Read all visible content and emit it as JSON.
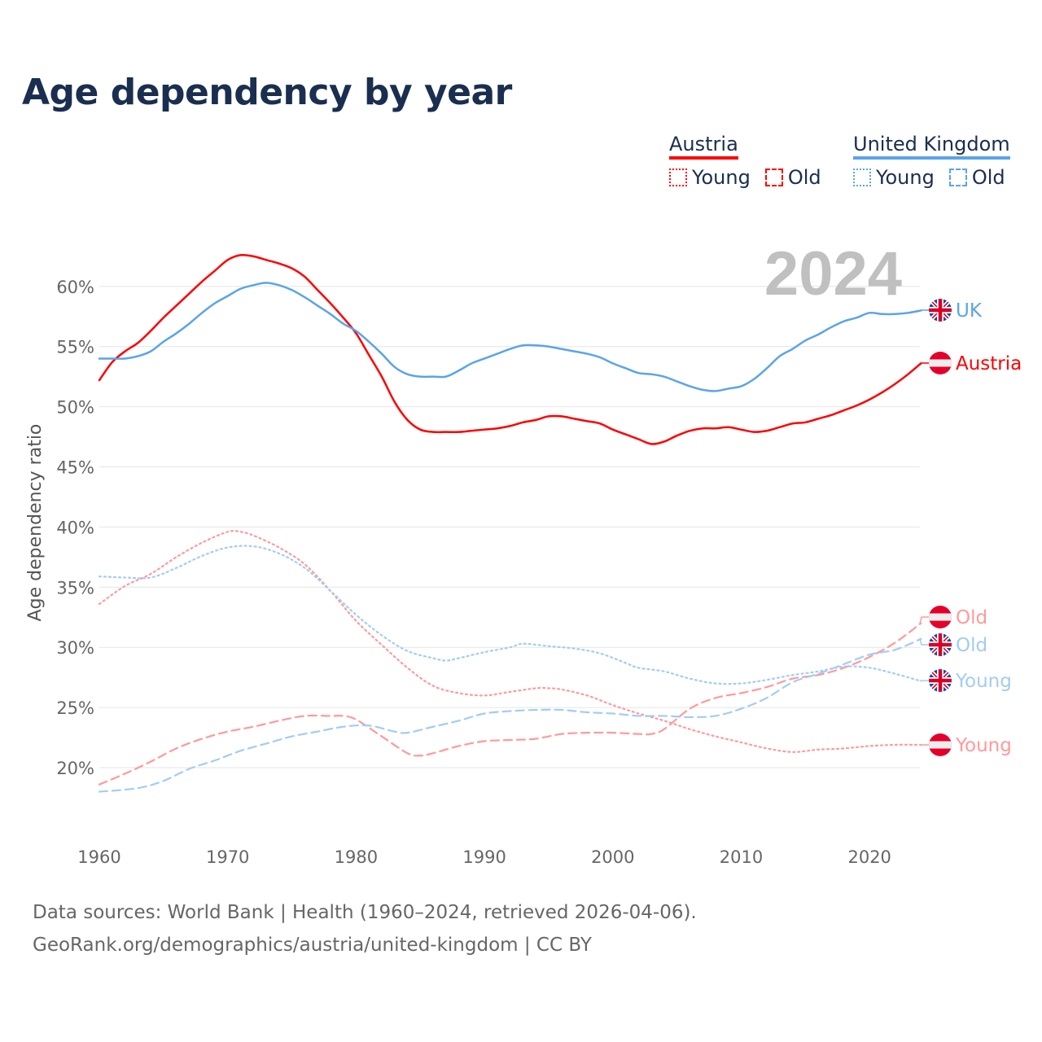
{
  "title": "Age dependency by year",
  "legend": {
    "austria": {
      "name": "Austria",
      "color": "#ff0000",
      "young": "Young",
      "old": "Old"
    },
    "uk": {
      "name": "United Kingdom",
      "color": "#5ba4e8",
      "young": "Young",
      "old": "Old"
    }
  },
  "footer": {
    "line1": "Data sources: World Bank | Health (1960–2024, retrieved 2026-04-06).",
    "line2": "GeoRank.org/demographics/austria/united-kingdom | CC BY"
  },
  "chart_data": {
    "type": "line",
    "title": "Age dependency by year",
    "year_watermark": "2024",
    "xlabel": "",
    "ylabel": "Age dependency ratio",
    "xlim": [
      1960,
      2024
    ],
    "ylim": [
      15,
      64
    ],
    "x_ticks": [
      "1960",
      "1970",
      "1980",
      "1990",
      "2000",
      "2010",
      "2020"
    ],
    "x_tick_values": [
      1960,
      1970,
      1980,
      1990,
      2000,
      2010,
      2020
    ],
    "y_ticks": [
      "20%",
      "25%",
      "30%",
      "35%",
      "40%",
      "45%",
      "50%",
      "55%",
      "60%"
    ],
    "y_tick_values": [
      20,
      25,
      30,
      35,
      40,
      45,
      50,
      55,
      60
    ],
    "grid": true,
    "legend_position": "top-right",
    "series": [
      {
        "name": "Austria",
        "end_label": "Austria",
        "flag": "austria",
        "color": "#ff0000",
        "style": "solid",
        "points": [
          [
            1960,
            52.2
          ],
          [
            1961,
            53.7
          ],
          [
            1962,
            54.6
          ],
          [
            1963,
            55.3
          ],
          [
            1964,
            56.3
          ],
          [
            1965,
            57.4
          ],
          [
            1966,
            58.4
          ],
          [
            1967,
            59.4
          ],
          [
            1968,
            60.4
          ],
          [
            1969,
            61.3
          ],
          [
            1970,
            62.2
          ],
          [
            1971,
            62.6
          ],
          [
            1972,
            62.5
          ],
          [
            1973,
            62.2
          ],
          [
            1974,
            61.9
          ],
          [
            1975,
            61.5
          ],
          [
            1976,
            60.8
          ],
          [
            1977,
            59.7
          ],
          [
            1978,
            58.6
          ],
          [
            1979,
            57.4
          ],
          [
            1980,
            56.1
          ],
          [
            1981,
            54.3
          ],
          [
            1982,
            52.5
          ],
          [
            1983,
            50.4
          ],
          [
            1984,
            48.9
          ],
          [
            1985,
            48.1
          ],
          [
            1986,
            47.9
          ],
          [
            1987,
            47.9
          ],
          [
            1988,
            47.9
          ],
          [
            1989,
            48.0
          ],
          [
            1990,
            48.1
          ],
          [
            1991,
            48.2
          ],
          [
            1992,
            48.4
          ],
          [
            1993,
            48.7
          ],
          [
            1994,
            48.9
          ],
          [
            1995,
            49.2
          ],
          [
            1996,
            49.2
          ],
          [
            1997,
            49.0
          ],
          [
            1998,
            48.8
          ],
          [
            1999,
            48.6
          ],
          [
            2000,
            48.1
          ],
          [
            2001,
            47.7
          ],
          [
            2002,
            47.3
          ],
          [
            2003,
            46.9
          ],
          [
            2004,
            47.1
          ],
          [
            2005,
            47.6
          ],
          [
            2006,
            48.0
          ],
          [
            2007,
            48.2
          ],
          [
            2008,
            48.2
          ],
          [
            2009,
            48.3
          ],
          [
            2010,
            48.1
          ],
          [
            2011,
            47.9
          ],
          [
            2012,
            48.0
          ],
          [
            2013,
            48.3
          ],
          [
            2014,
            48.6
          ],
          [
            2015,
            48.7
          ],
          [
            2016,
            49.0
          ],
          [
            2017,
            49.3
          ],
          [
            2018,
            49.7
          ],
          [
            2019,
            50.1
          ],
          [
            2020,
            50.6
          ],
          [
            2021,
            51.2
          ],
          [
            2022,
            51.9
          ],
          [
            2023,
            52.7
          ],
          [
            2024,
            53.6
          ]
        ]
      },
      {
        "name": "United Kingdom",
        "end_label": "UK",
        "flag": "uk",
        "color": "#5ba4e8",
        "style": "solid",
        "points": [
          [
            1960,
            54.0
          ],
          [
            1961,
            54.0
          ],
          [
            1962,
            54.0
          ],
          [
            1963,
            54.2
          ],
          [
            1964,
            54.6
          ],
          [
            1965,
            55.4
          ],
          [
            1966,
            56.1
          ],
          [
            1967,
            56.9
          ],
          [
            1968,
            57.8
          ],
          [
            1969,
            58.6
          ],
          [
            1970,
            59.2
          ],
          [
            1971,
            59.8
          ],
          [
            1972,
            60.1
          ],
          [
            1973,
            60.3
          ],
          [
            1974,
            60.1
          ],
          [
            1975,
            59.7
          ],
          [
            1976,
            59.1
          ],
          [
            1977,
            58.4
          ],
          [
            1978,
            57.7
          ],
          [
            1979,
            56.9
          ],
          [
            1980,
            56.3
          ],
          [
            1981,
            55.4
          ],
          [
            1982,
            54.4
          ],
          [
            1983,
            53.3
          ],
          [
            1984,
            52.7
          ],
          [
            1985,
            52.5
          ],
          [
            1986,
            52.5
          ],
          [
            1987,
            52.5
          ],
          [
            1988,
            53.0
          ],
          [
            1989,
            53.6
          ],
          [
            1990,
            54.0
          ],
          [
            1991,
            54.4
          ],
          [
            1992,
            54.8
          ],
          [
            1993,
            55.1
          ],
          [
            1994,
            55.1
          ],
          [
            1995,
            55.0
          ],
          [
            1996,
            54.8
          ],
          [
            1997,
            54.6
          ],
          [
            1998,
            54.4
          ],
          [
            1999,
            54.1
          ],
          [
            2000,
            53.6
          ],
          [
            2001,
            53.2
          ],
          [
            2002,
            52.8
          ],
          [
            2003,
            52.7
          ],
          [
            2004,
            52.5
          ],
          [
            2005,
            52.1
          ],
          [
            2006,
            51.7
          ],
          [
            2007,
            51.4
          ],
          [
            2008,
            51.3
          ],
          [
            2009,
            51.5
          ],
          [
            2010,
            51.7
          ],
          [
            2011,
            52.3
          ],
          [
            2012,
            53.2
          ],
          [
            2013,
            54.2
          ],
          [
            2014,
            54.8
          ],
          [
            2015,
            55.5
          ],
          [
            2016,
            56.0
          ],
          [
            2017,
            56.6
          ],
          [
            2018,
            57.1
          ],
          [
            2019,
            57.4
          ],
          [
            2020,
            57.8
          ],
          [
            2021,
            57.7
          ],
          [
            2022,
            57.7
          ],
          [
            2023,
            57.8
          ],
          [
            2024,
            58.0
          ]
        ]
      },
      {
        "name": "Austria Young",
        "end_label": "Young",
        "flag": "austria",
        "color": "#ff9a9a",
        "style": "dotted",
        "points": [
          [
            1960,
            33.6
          ],
          [
            1962,
            35.1
          ],
          [
            1964,
            36.1
          ],
          [
            1966,
            37.5
          ],
          [
            1968,
            38.7
          ],
          [
            1970,
            39.6
          ],
          [
            1971,
            39.6
          ],
          [
            1972,
            39.3
          ],
          [
            1974,
            38.3
          ],
          [
            1976,
            36.9
          ],
          [
            1978,
            34.7
          ],
          [
            1980,
            32.2
          ],
          [
            1982,
            30.2
          ],
          [
            1984,
            28.3
          ],
          [
            1986,
            26.8
          ],
          [
            1988,
            26.2
          ],
          [
            1990,
            26.0
          ],
          [
            1992,
            26.3
          ],
          [
            1994,
            26.6
          ],
          [
            1995,
            26.6
          ],
          [
            1996,
            26.5
          ],
          [
            1998,
            26.0
          ],
          [
            2000,
            25.2
          ],
          [
            2002,
            24.5
          ],
          [
            2004,
            23.9
          ],
          [
            2006,
            23.2
          ],
          [
            2008,
            22.6
          ],
          [
            2010,
            22.1
          ],
          [
            2012,
            21.6
          ],
          [
            2014,
            21.3
          ],
          [
            2016,
            21.5
          ],
          [
            2018,
            21.6
          ],
          [
            2020,
            21.8
          ],
          [
            2022,
            21.9
          ],
          [
            2024,
            21.9
          ]
        ]
      },
      {
        "name": "Austria Old",
        "end_label": "Old",
        "flag": "austria",
        "color": "#ff9a9a",
        "style": "dashed",
        "points": [
          [
            1960,
            18.6
          ],
          [
            1962,
            19.5
          ],
          [
            1964,
            20.5
          ],
          [
            1966,
            21.6
          ],
          [
            1968,
            22.4
          ],
          [
            1970,
            23.0
          ],
          [
            1972,
            23.4
          ],
          [
            1974,
            23.9
          ],
          [
            1976,
            24.3
          ],
          [
            1978,
            24.3
          ],
          [
            1979,
            24.3
          ],
          [
            1980,
            24.0
          ],
          [
            1982,
            22.6
          ],
          [
            1984,
            21.2
          ],
          [
            1985,
            21.0
          ],
          [
            1986,
            21.2
          ],
          [
            1988,
            21.8
          ],
          [
            1990,
            22.2
          ],
          [
            1992,
            22.3
          ],
          [
            1994,
            22.4
          ],
          [
            1996,
            22.8
          ],
          [
            1998,
            22.9
          ],
          [
            2000,
            22.9
          ],
          [
            2002,
            22.8
          ],
          [
            2003,
            22.8
          ],
          [
            2004,
            23.2
          ],
          [
            2006,
            24.9
          ],
          [
            2008,
            25.8
          ],
          [
            2010,
            26.2
          ],
          [
            2012,
            26.7
          ],
          [
            2014,
            27.4
          ],
          [
            2016,
            27.7
          ],
          [
            2018,
            28.3
          ],
          [
            2020,
            29.2
          ],
          [
            2022,
            30.4
          ],
          [
            2024,
            32.0
          ]
        ]
      },
      {
        "name": "United Kingdom Young",
        "end_label": "Young",
        "flag": "uk",
        "color": "#a3ccf3",
        "style": "dotted",
        "points": [
          [
            1960,
            35.9
          ],
          [
            1962,
            35.8
          ],
          [
            1964,
            35.8
          ],
          [
            1966,
            36.6
          ],
          [
            1968,
            37.6
          ],
          [
            1970,
            38.3
          ],
          [
            1972,
            38.4
          ],
          [
            1974,
            37.8
          ],
          [
            1976,
            36.6
          ],
          [
            1978,
            34.7
          ],
          [
            1980,
            32.7
          ],
          [
            1982,
            31.0
          ],
          [
            1984,
            29.7
          ],
          [
            1986,
            29.1
          ],
          [
            1987,
            28.9
          ],
          [
            1988,
            29.1
          ],
          [
            1990,
            29.6
          ],
          [
            1992,
            30.0
          ],
          [
            1993,
            30.3
          ],
          [
            1995,
            30.1
          ],
          [
            1997,
            29.9
          ],
          [
            1999,
            29.5
          ],
          [
            2001,
            28.7
          ],
          [
            2002,
            28.3
          ],
          [
            2004,
            28.0
          ],
          [
            2006,
            27.4
          ],
          [
            2008,
            27.0
          ],
          [
            2010,
            27.0
          ],
          [
            2012,
            27.3
          ],
          [
            2014,
            27.7
          ],
          [
            2016,
            28.0
          ],
          [
            2018,
            28.4
          ],
          [
            2020,
            28.3
          ],
          [
            2022,
            27.8
          ],
          [
            2024,
            27.2
          ]
        ]
      },
      {
        "name": "United Kingdom Old",
        "end_label": "Old",
        "flag": "uk",
        "color": "#a3ccf3",
        "style": "dashed",
        "points": [
          [
            1960,
            18.0
          ],
          [
            1963,
            18.3
          ],
          [
            1965,
            18.9
          ],
          [
            1967,
            19.9
          ],
          [
            1969,
            20.6
          ],
          [
            1971,
            21.4
          ],
          [
            1973,
            22.0
          ],
          [
            1975,
            22.6
          ],
          [
            1977,
            23.0
          ],
          [
            1979,
            23.4
          ],
          [
            1981,
            23.5
          ],
          [
            1983,
            23.0
          ],
          [
            1984,
            22.9
          ],
          [
            1986,
            23.4
          ],
          [
            1988,
            23.9
          ],
          [
            1990,
            24.5
          ],
          [
            1992,
            24.7
          ],
          [
            1994,
            24.8
          ],
          [
            1996,
            24.8
          ],
          [
            1998,
            24.6
          ],
          [
            2000,
            24.5
          ],
          [
            2002,
            24.3
          ],
          [
            2004,
            24.3
          ],
          [
            2006,
            24.2
          ],
          [
            2008,
            24.3
          ],
          [
            2010,
            24.9
          ],
          [
            2012,
            25.8
          ],
          [
            2014,
            27.1
          ],
          [
            2016,
            27.8
          ],
          [
            2018,
            28.6
          ],
          [
            2020,
            29.4
          ],
          [
            2022,
            29.8
          ],
          [
            2024,
            30.7
          ]
        ]
      }
    ]
  }
}
